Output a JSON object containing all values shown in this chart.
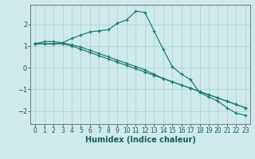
{
  "xlabel": "Humidex (Indice chaleur)",
  "ylabel": "",
  "bg_color": "#ceeaea",
  "line_color": "#1a7a6e",
  "grid_color": "#aacfcf",
  "xlim": [
    -0.5,
    23.5
  ],
  "ylim": [
    -2.6,
    2.9
  ],
  "yticks": [
    -2,
    -1,
    0,
    1,
    2
  ],
  "xticks": [
    0,
    1,
    2,
    3,
    4,
    5,
    6,
    7,
    8,
    9,
    10,
    11,
    12,
    13,
    14,
    15,
    16,
    17,
    18,
    19,
    20,
    21,
    22,
    23
  ],
  "series1_x": [
    0,
    1,
    2,
    3,
    4,
    5,
    6,
    7,
    8,
    9,
    10,
    11,
    12,
    13,
    14,
    15,
    16,
    17,
    18,
    19,
    20,
    21,
    22,
    23
  ],
  "series1_y": [
    1.1,
    1.2,
    1.2,
    1.15,
    1.35,
    1.5,
    1.65,
    1.7,
    1.75,
    2.05,
    2.2,
    2.6,
    2.55,
    1.7,
    0.85,
    0.05,
    -0.3,
    -0.55,
    -1.15,
    -1.35,
    -1.55,
    -1.85,
    -2.1,
    -2.2
  ],
  "series2_x": [
    0,
    1,
    2,
    3,
    4,
    5,
    6,
    7,
    8,
    9,
    10,
    11,
    12,
    13,
    14,
    15,
    16,
    17,
    18,
    19,
    20,
    21,
    22,
    23
  ],
  "series2_y": [
    1.1,
    1.1,
    1.1,
    1.1,
    1.0,
    0.85,
    0.7,
    0.55,
    0.4,
    0.25,
    0.1,
    -0.05,
    -0.2,
    -0.35,
    -0.5,
    -0.65,
    -0.8,
    -0.95,
    -1.1,
    -1.25,
    -1.4,
    -1.55,
    -1.7,
    -1.85
  ],
  "series3_x": [
    0,
    1,
    2,
    3,
    4,
    5,
    6,
    7,
    8,
    9,
    10,
    11,
    12,
    13,
    14,
    15,
    16,
    17,
    18,
    19,
    20,
    21,
    22,
    23
  ],
  "series3_y": [
    1.1,
    1.1,
    1.1,
    1.15,
    1.05,
    0.95,
    0.8,
    0.65,
    0.5,
    0.35,
    0.2,
    0.05,
    -0.1,
    -0.3,
    -0.5,
    -0.65,
    -0.8,
    -0.95,
    -1.1,
    -1.25,
    -1.4,
    -1.55,
    -1.7,
    -1.85
  ],
  "tick_fontsize": 5.5,
  "xlabel_fontsize": 7.0,
  "spine_color": "#666666"
}
